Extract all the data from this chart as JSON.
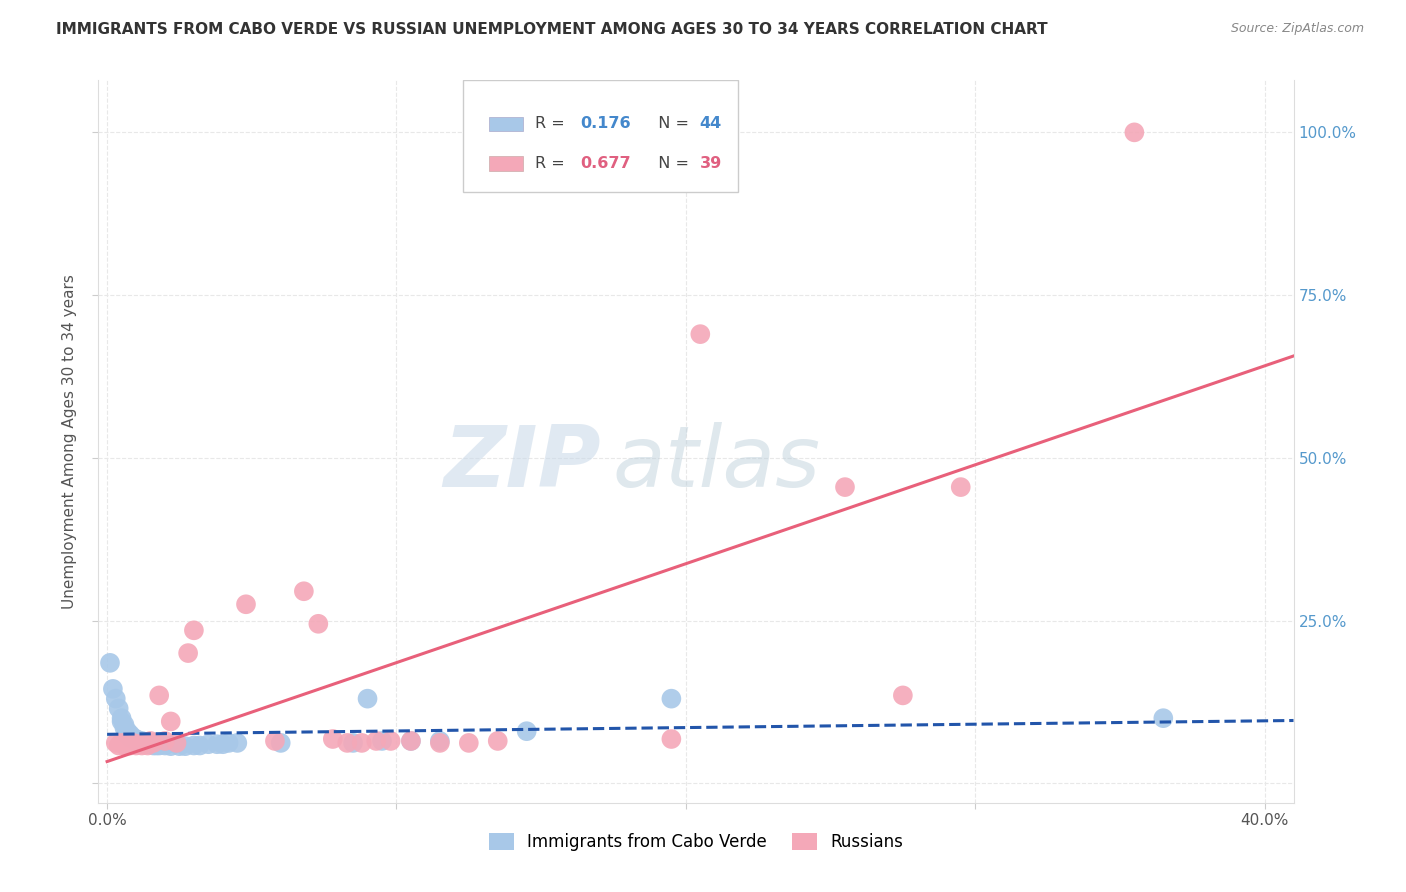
{
  "title": "IMMIGRANTS FROM CABO VERDE VS RUSSIAN UNEMPLOYMENT AMONG AGES 30 TO 34 YEARS CORRELATION CHART",
  "source": "Source: ZipAtlas.com",
  "ylabel": "Unemployment Among Ages 30 to 34 years",
  "xlim": [
    -0.003,
    0.41
  ],
  "ylim": [
    -0.03,
    1.08
  ],
  "legend_r_cabo": "0.176",
  "legend_n_cabo": "44",
  "legend_r_russian": "0.677",
  "legend_n_russian": "39",
  "cabo_color": "#a8c8e8",
  "russian_color": "#f4a8b8",
  "cabo_line_color": "#2255aa",
  "russian_line_color": "#e8607a",
  "cabo_scatter": [
    [
      0.001,
      0.185
    ],
    [
      0.002,
      0.145
    ],
    [
      0.003,
      0.13
    ],
    [
      0.004,
      0.115
    ],
    [
      0.005,
      0.1
    ],
    [
      0.005,
      0.095
    ],
    [
      0.006,
      0.09
    ],
    [
      0.006,
      0.085
    ],
    [
      0.007,
      0.08
    ],
    [
      0.007,
      0.075
    ],
    [
      0.008,
      0.075
    ],
    [
      0.008,
      0.07
    ],
    [
      0.009,
      0.07
    ],
    [
      0.01,
      0.068
    ],
    [
      0.01,
      0.065
    ],
    [
      0.011,
      0.065
    ],
    [
      0.012,
      0.065
    ],
    [
      0.012,
      0.062
    ],
    [
      0.013,
      0.062
    ],
    [
      0.014,
      0.06
    ],
    [
      0.015,
      0.06
    ],
    [
      0.016,
      0.058
    ],
    [
      0.017,
      0.058
    ],
    [
      0.018,
      0.058
    ],
    [
      0.02,
      0.058
    ],
    [
      0.022,
      0.057
    ],
    [
      0.025,
      0.057
    ],
    [
      0.027,
      0.057
    ],
    [
      0.03,
      0.058
    ],
    [
      0.032,
      0.058
    ],
    [
      0.035,
      0.06
    ],
    [
      0.038,
      0.06
    ],
    [
      0.04,
      0.06
    ],
    [
      0.042,
      0.062
    ],
    [
      0.045,
      0.062
    ],
    [
      0.06,
      0.062
    ],
    [
      0.085,
      0.062
    ],
    [
      0.09,
      0.13
    ],
    [
      0.095,
      0.065
    ],
    [
      0.105,
      0.065
    ],
    [
      0.115,
      0.065
    ],
    [
      0.145,
      0.08
    ],
    [
      0.195,
      0.13
    ],
    [
      0.365,
      0.1
    ]
  ],
  "russian_scatter": [
    [
      0.003,
      0.062
    ],
    [
      0.004,
      0.058
    ],
    [
      0.005,
      0.062
    ],
    [
      0.006,
      0.058
    ],
    [
      0.007,
      0.06
    ],
    [
      0.008,
      0.058
    ],
    [
      0.009,
      0.062
    ],
    [
      0.01,
      0.058
    ],
    [
      0.011,
      0.06
    ],
    [
      0.012,
      0.058
    ],
    [
      0.013,
      0.062
    ],
    [
      0.014,
      0.058
    ],
    [
      0.015,
      0.065
    ],
    [
      0.016,
      0.062
    ],
    [
      0.018,
      0.135
    ],
    [
      0.02,
      0.065
    ],
    [
      0.022,
      0.095
    ],
    [
      0.024,
      0.062
    ],
    [
      0.028,
      0.2
    ],
    [
      0.03,
      0.235
    ],
    [
      0.048,
      0.275
    ],
    [
      0.058,
      0.065
    ],
    [
      0.068,
      0.295
    ],
    [
      0.073,
      0.245
    ],
    [
      0.078,
      0.068
    ],
    [
      0.083,
      0.062
    ],
    [
      0.088,
      0.062
    ],
    [
      0.093,
      0.065
    ],
    [
      0.098,
      0.065
    ],
    [
      0.105,
      0.065
    ],
    [
      0.115,
      0.062
    ],
    [
      0.125,
      0.062
    ],
    [
      0.135,
      0.065
    ],
    [
      0.195,
      0.068
    ],
    [
      0.205,
      0.69
    ],
    [
      0.255,
      0.455
    ],
    [
      0.275,
      0.135
    ],
    [
      0.295,
      0.455
    ],
    [
      0.355,
      1.0
    ]
  ],
  "watermark_zip": "ZIP",
  "watermark_atlas": "atlas",
  "background_color": "#ffffff",
  "grid_color": "#e8e8e8",
  "legend_box_color": "#ffffff",
  "legend_border_color": "#cccccc"
}
